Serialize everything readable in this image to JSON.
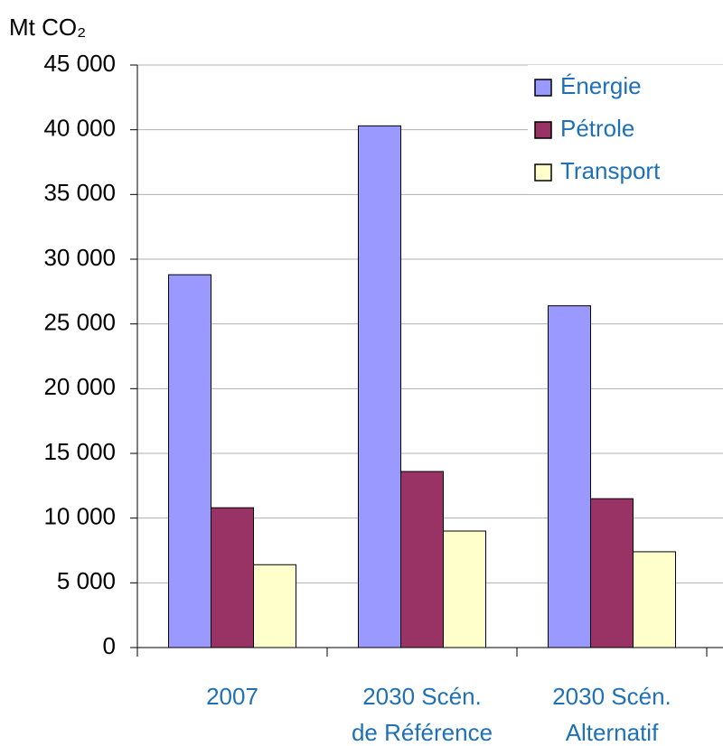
{
  "chart_data": {
    "type": "bar",
    "y_axis_label": "Mt CO₂",
    "categories": [
      "2007",
      "2030 Scén.\nde Référence",
      "2030 Scén.\nAlternatif"
    ],
    "series": [
      {
        "name": "Énergie",
        "color": "#9999ff",
        "values": [
          28800,
          40300,
          26400
        ]
      },
      {
        "name": "Pétrole",
        "color": "#993366",
        "values": [
          10800,
          13600,
          11500
        ]
      },
      {
        "name": "Transport",
        "color": "#ffffcc",
        "values": [
          6400,
          9000,
          7400
        ]
      }
    ],
    "ylim": [
      0,
      45000
    ],
    "yticks": [
      0,
      {
        "value": 5000,
        "label": "5 000"
      },
      {
        "value": 10000,
        "label": "10 000"
      },
      {
        "value": 15000,
        "label": "15 000"
      },
      {
        "value": 20000,
        "label": "20 000"
      },
      {
        "value": 25000,
        "label": "25 000"
      },
      {
        "value": 30000,
        "label": "30 000"
      },
      {
        "value": 35000,
        "label": "35 000"
      },
      {
        "value": 40000,
        "label": "40 000"
      },
      {
        "value": 45000,
        "label": "45 000"
      }
    ],
    "grid": true,
    "legend": "top-right"
  }
}
